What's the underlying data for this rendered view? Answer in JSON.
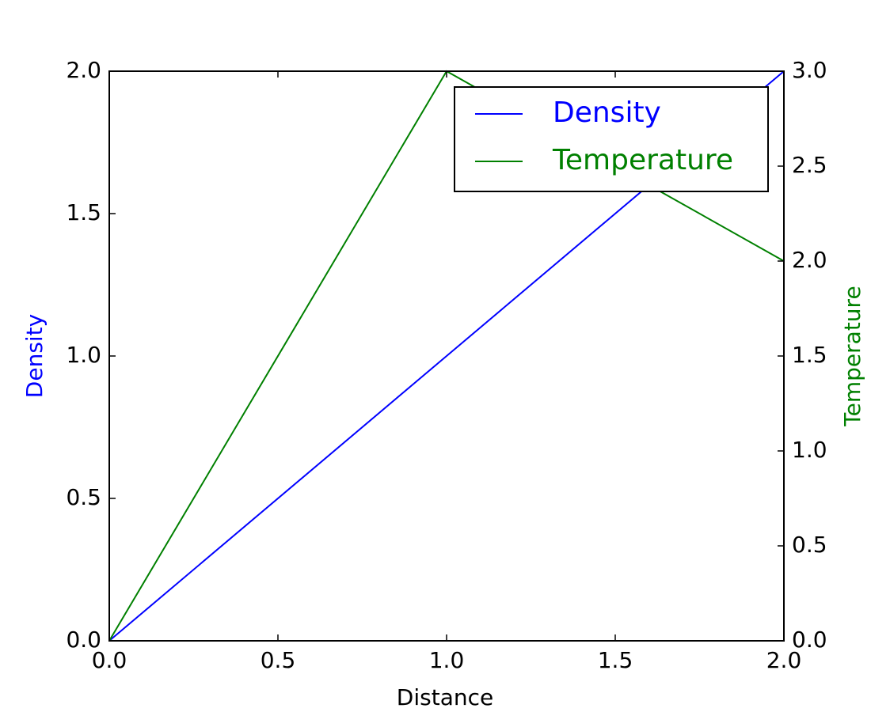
{
  "chart_data": {
    "type": "line",
    "xlabel": "Distance",
    "ylabel": "Density",
    "y2label": "Temperature",
    "x": [
      0,
      1,
      2
    ],
    "series": [
      {
        "name": "Density",
        "color": "#0000ff",
        "values": [
          0,
          1,
          2
        ]
      },
      {
        "name": "Temperature",
        "color": "#008000",
        "values": [
          0,
          3,
          2
        ],
        "axis": "y2"
      }
    ],
    "xlim": [
      0,
      2
    ],
    "xticks": [
      {
        "value": 0,
        "label": "0.0"
      },
      0.5,
      {
        "value": 1,
        "label": "1.0"
      },
      1.5,
      {
        "value": 2,
        "label": "2.0"
      }
    ],
    "ylim": [
      0,
      2
    ],
    "yticks": [
      {
        "value": 0,
        "label": "0.0"
      },
      0.5,
      {
        "value": 1,
        "label": "1.0"
      },
      1.5,
      {
        "value": 2,
        "label": "2.0"
      }
    ],
    "y2lim": [
      0,
      3
    ],
    "y2ticks": [
      {
        "value": 0,
        "label": "0.0"
      },
      0.5,
      {
        "value": 1,
        "label": "1.0"
      },
      1.5,
      {
        "value": 2,
        "label": "2.0"
      },
      2.5,
      {
        "value": 3,
        "label": "3.0"
      }
    ],
    "grid": false,
    "legend": "upper right"
  }
}
